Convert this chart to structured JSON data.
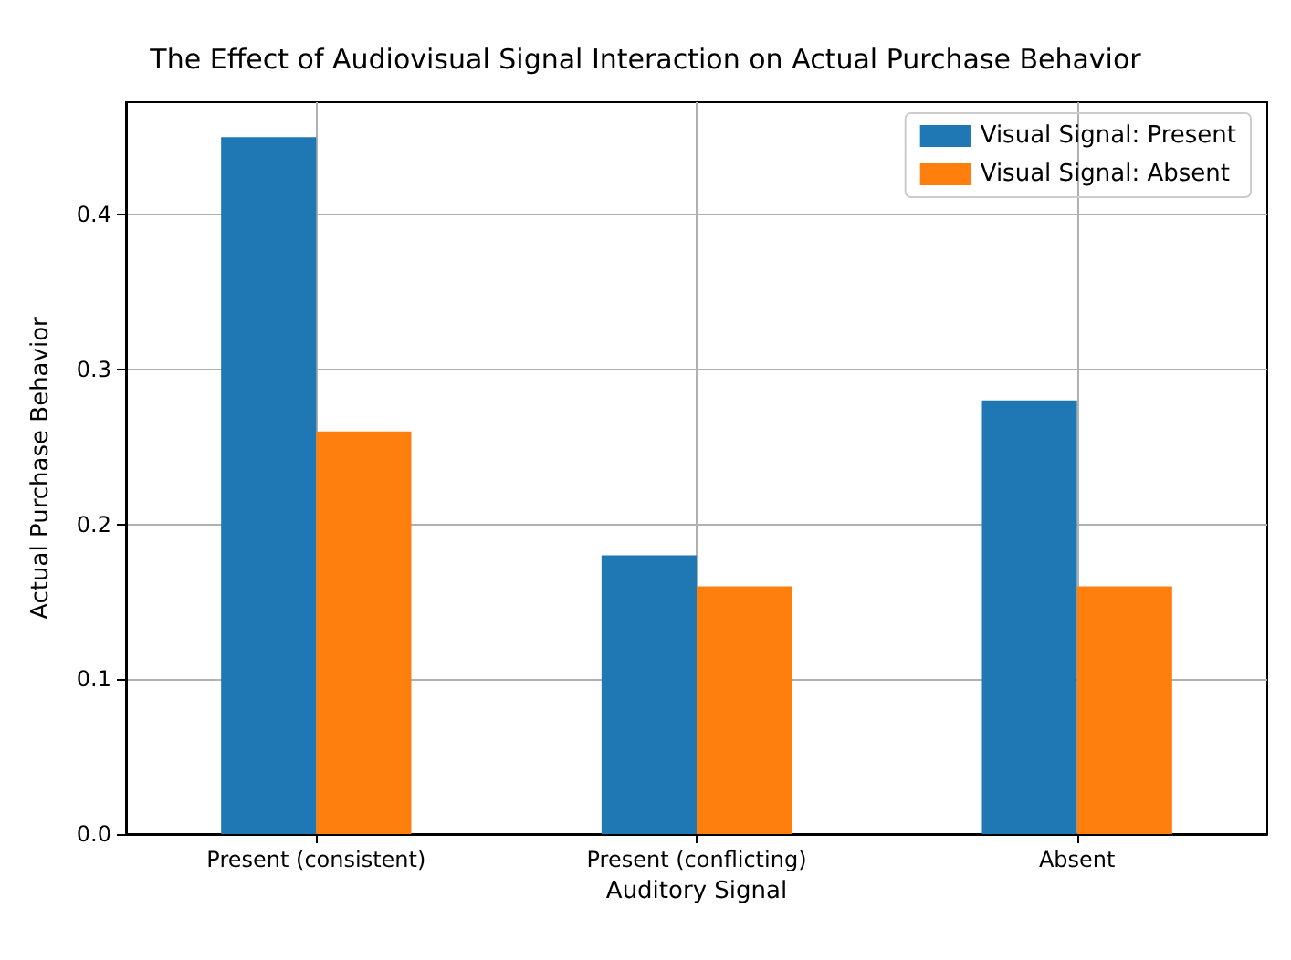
{
  "chart_data": {
    "type": "bar",
    "title": "The Effect of Audiovisual Signal Interaction on Actual Purchase Behavior",
    "xlabel": "Auditory Signal",
    "ylabel": "Actual Purchase Behavior",
    "categories": [
      "Present (consistent)",
      "Present (conflicting)",
      "Absent"
    ],
    "series": [
      {
        "name": "Visual Signal: Present",
        "color": "#1f77b4",
        "values": [
          0.45,
          0.18,
          0.28
        ]
      },
      {
        "name": "Visual Signal: Absent",
        "color": "#ff7f0e",
        "values": [
          0.26,
          0.16,
          0.16
        ]
      }
    ],
    "ylim": [
      0,
      0.4725
    ],
    "yticks": [
      {
        "value": 0,
        "label": "0.0"
      },
      {
        "value": 0.1,
        "label": "0.1"
      },
      {
        "value": 0.2,
        "label": "0.2"
      },
      {
        "value": 0.3,
        "label": "0.3"
      },
      {
        "value": 0.4,
        "label": "0.4"
      }
    ],
    "grid": true,
    "legend": "top right"
  }
}
